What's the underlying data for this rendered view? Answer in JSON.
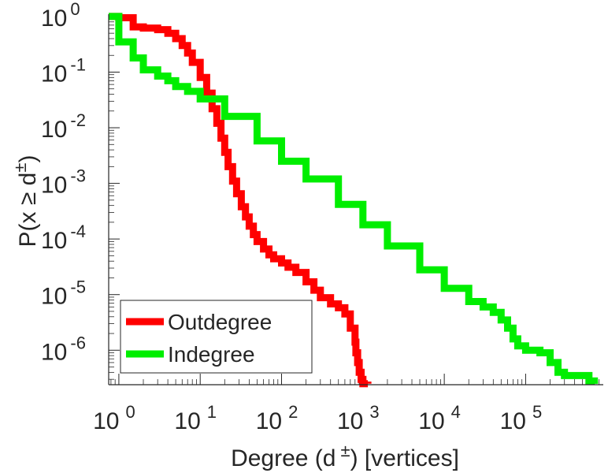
{
  "chart_data": {
    "type": "line",
    "title": "",
    "xlabel": "Degree (d",
    "xlabel_sup": "±",
    "xlabel_tail": ") [vertices]",
    "ylabel": "P(x ≥ d",
    "ylabel_sup": "±",
    "ylabel_tail": ")",
    "xscale": "log",
    "yscale": "log",
    "xlim": [
      0.75,
      900000
    ],
    "ylim": [
      2.4e-07,
      1.1
    ],
    "x_ticks": [
      {
        "base": "10",
        "exp": "0",
        "value": 1
      },
      {
        "base": "10",
        "exp": "1",
        "value": 10
      },
      {
        "base": "10",
        "exp": "2",
        "value": 100
      },
      {
        "base": "10",
        "exp": "3",
        "value": 1000
      },
      {
        "base": "10",
        "exp": "4",
        "value": 10000
      },
      {
        "base": "10",
        "exp": "5",
        "value": 100000
      }
    ],
    "y_ticks": [
      {
        "base": "10",
        "exp": "0",
        "value": 1
      },
      {
        "base": "10",
        "exp": "-1",
        "value": 0.1
      },
      {
        "base": "10",
        "exp": "-2",
        "value": 0.01
      },
      {
        "base": "10",
        "exp": "-3",
        "value": 0.001
      },
      {
        "base": "10",
        "exp": "-4",
        "value": 0.0001
      },
      {
        "base": "10",
        "exp": "-5",
        "value": 1e-05
      },
      {
        "base": "10",
        "exp": "-6",
        "value": 1e-06
      }
    ],
    "legend_position": "bottom-left",
    "series": [
      {
        "name": "Outdegree",
        "color": "#ff0000",
        "x": [
          0.75,
          1,
          1.5,
          2,
          3,
          4,
          5,
          6,
          7,
          8,
          10,
          12,
          14,
          16,
          18,
          20,
          22,
          25,
          28,
          32,
          36,
          40,
          45,
          50,
          60,
          70,
          80,
          100,
          120,
          150,
          200,
          250,
          300,
          400,
          500,
          600,
          700,
          800,
          820,
          860,
          900,
          950,
          1000,
          1050,
          1150
        ],
        "y": [
          1,
          0.95,
          0.65,
          0.62,
          0.58,
          0.5,
          0.4,
          0.3,
          0.22,
          0.15,
          0.08,
          0.042,
          0.022,
          0.012,
          0.0065,
          0.0036,
          0.002,
          0.0011,
          0.00065,
          0.00038,
          0.00025,
          0.00017,
          0.00012,
          9e-05,
          6.6e-05,
          5.2e-05,
          4.4e-05,
          3.7e-05,
          3.1e-05,
          2.5e-05,
          1.7e-05,
          1.2e-05,
          8.8e-06,
          6.8e-06,
          5.8e-06,
          4.5e-06,
          2.5e-06,
          1.4e-06,
          9e-07,
          6e-07,
          4e-07,
          3e-07,
          2.5e-07,
          2.5e-07,
          2.5e-07
        ]
      },
      {
        "name": "Indegree",
        "color": "#00ee00",
        "x": [
          0.75,
          1,
          1.5,
          2,
          3,
          4,
          5,
          7,
          10,
          20,
          50,
          100,
          200,
          500,
          1000,
          2000,
          5000,
          10000,
          20000,
          30000,
          40000,
          50000,
          60000,
          70000,
          80000,
          100000,
          150000,
          200000,
          250000,
          300000,
          400000,
          500000,
          600000,
          700000
        ],
        "y": [
          1,
          0.35,
          0.18,
          0.11,
          0.085,
          0.07,
          0.055,
          0.045,
          0.033,
          0.016,
          0.0058,
          0.0025,
          0.0012,
          0.00042,
          0.00018,
          7.5e-05,
          2.8e-05,
          1.3e-05,
          7.5e-06,
          6e-06,
          4.8e-06,
          3.5e-06,
          2.5e-06,
          1.6e-06,
          1.2e-06,
          1e-06,
          9e-07,
          6e-07,
          4e-07,
          3.5e-07,
          3.5e-07,
          3.5e-07,
          2.8e-07,
          2.5e-07
        ]
      }
    ]
  }
}
